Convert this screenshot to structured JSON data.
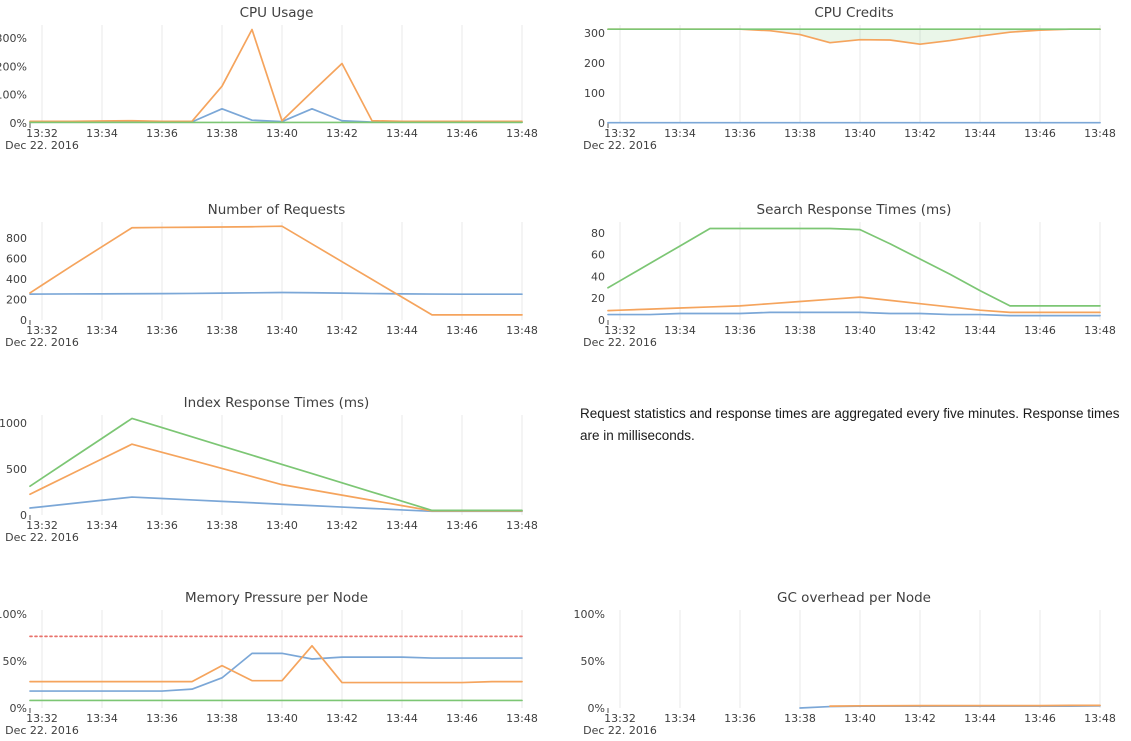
{
  "page": {
    "background": "#ffffff"
  },
  "palette": {
    "blue": "#7BA7D7",
    "orange": "#F5A45D",
    "green": "#7CC674",
    "red": "#E8736C",
    "grid": "#e9e9e9",
    "tick_text": "#3f3f3f",
    "title_text": "#3f3f3f"
  },
  "time_axis": {
    "tick_labels": [
      "13:32",
      "13:34",
      "13:36",
      "13:38",
      "13:40",
      "13:42",
      "13:44",
      "13:46",
      "13:48"
    ],
    "date_label": "Dec 22. 2016",
    "minutes_span": 16
  },
  "note": {
    "text": "Request statistics and response times are aggregated every five minutes. Response times are in milliseconds."
  },
  "chart_data": [
    {
      "id": "cpu-usage",
      "type": "line",
      "title": "CPU Usage",
      "col": "left",
      "row": 1,
      "ylim": [
        0,
        346
      ],
      "yticks": [
        {
          "v": 0,
          "label": "0%"
        },
        {
          "v": 100,
          "label": "100%"
        },
        {
          "v": 200,
          "label": "200%"
        },
        {
          "v": 300,
          "label": "300%"
        }
      ],
      "x": [
        "13:32",
        "13:33",
        "13:34",
        "13:35",
        "13:36",
        "13:37",
        "13:38",
        "13:39",
        "13:40",
        "13:41",
        "13:42",
        "13:43",
        "13:44",
        "13:45",
        "13:46",
        "13:47",
        "13:48"
      ],
      "series": [
        {
          "name": "blue",
          "color": "blue",
          "values": [
            3,
            3,
            3,
            3,
            3,
            4,
            50,
            10,
            5,
            50,
            8,
            3,
            3,
            3,
            3,
            3,
            3
          ]
        },
        {
          "name": "orange",
          "color": "orange",
          "values": [
            6,
            6,
            7,
            8,
            6,
            6,
            130,
            330,
            8,
            110,
            210,
            8,
            6,
            6,
            6,
            6,
            6
          ]
        },
        {
          "name": "green",
          "color": "green",
          "values": [
            2,
            2,
            2,
            2,
            2,
            2,
            2,
            2,
            2,
            2,
            2,
            2,
            2,
            2,
            2,
            2,
            2
          ]
        }
      ]
    },
    {
      "id": "cpu-credits",
      "type": "line",
      "title": "CPU Credits",
      "col": "right",
      "row": 1,
      "ylim": [
        0,
        327
      ],
      "yticks": [
        {
          "v": 0,
          "label": "0"
        },
        {
          "v": 100,
          "label": "100"
        },
        {
          "v": 200,
          "label": "200"
        },
        {
          "v": 300,
          "label": "300"
        }
      ],
      "x": [
        "13:32",
        "13:33",
        "13:34",
        "13:35",
        "13:36",
        "13:37",
        "13:38",
        "13:39",
        "13:40",
        "13:41",
        "13:42",
        "13:43",
        "13:44",
        "13:45",
        "13:46",
        "13:47",
        "13:48"
      ],
      "fill_between": [
        2,
        1,
        "rgba(124,198,116,0.16)"
      ],
      "series": [
        {
          "name": "blue",
          "color": "blue",
          "values": [
            1,
            1,
            1,
            1,
            1,
            1,
            1,
            1,
            1,
            1,
            1,
            1,
            1,
            1,
            1,
            1,
            1
          ]
        },
        {
          "name": "orange",
          "color": "orange",
          "values": [
            313,
            313,
            313,
            313,
            313,
            308,
            295,
            268,
            278,
            277,
            263,
            275,
            290,
            303,
            310,
            313,
            313
          ]
        },
        {
          "name": "green",
          "color": "green",
          "values": [
            313,
            313,
            313,
            313,
            313,
            313,
            313,
            313,
            313,
            313,
            313,
            313,
            313,
            313,
            313,
            313,
            313
          ]
        }
      ]
    },
    {
      "id": "number-of-requests",
      "type": "line",
      "title": "Number of Requests",
      "col": "left",
      "row": 2,
      "ylim": [
        0,
        956
      ],
      "yticks": [
        {
          "v": 0,
          "label": "0"
        },
        {
          "v": 200,
          "label": "200"
        },
        {
          "v": 400,
          "label": "400"
        },
        {
          "v": 600,
          "label": "600"
        },
        {
          "v": 800,
          "label": "800"
        }
      ],
      "x": [
        "13:32",
        "13:33",
        "13:34",
        "13:35",
        "13:36",
        "13:37",
        "13:38",
        "13:39",
        "13:40",
        "13:41",
        "13:42",
        "13:43",
        "13:44",
        "13:45",
        "13:46",
        "13:47",
        "13:48"
      ],
      "series": [
        {
          "name": "blue",
          "color": "blue",
          "values": [
            253,
            254,
            255,
            256,
            257,
            259,
            262,
            265,
            268,
            266,
            262,
            258,
            255,
            253,
            252,
            252,
            252
          ]
        },
        {
          "name": "orange",
          "color": "orange",
          "values": [
            340,
            530,
            715,
            900,
            903,
            905,
            907,
            910,
            915,
            742,
            569,
            396,
            223,
            50,
            50,
            50,
            50
          ]
        }
      ]
    },
    {
      "id": "search-response-times",
      "type": "line",
      "title": "Search Response Times (ms)",
      "col": "right",
      "row": 2,
      "ylim": [
        0,
        90
      ],
      "yticks": [
        {
          "v": 0,
          "label": "0"
        },
        {
          "v": 20,
          "label": "20"
        },
        {
          "v": 40,
          "label": "40"
        },
        {
          "v": 60,
          "label": "60"
        },
        {
          "v": 80,
          "label": "80"
        }
      ],
      "x": [
        "13:32",
        "13:33",
        "13:34",
        "13:35",
        "13:36",
        "13:37",
        "13:38",
        "13:39",
        "13:40",
        "13:41",
        "13:42",
        "13:43",
        "13:44",
        "13:45",
        "13:46",
        "13:47",
        "13:48"
      ],
      "series": [
        {
          "name": "blue",
          "color": "blue",
          "values": [
            5,
            5,
            6,
            6,
            6,
            7,
            7,
            7,
            7,
            6,
            6,
            5,
            5,
            4,
            4,
            4,
            4
          ]
        },
        {
          "name": "orange",
          "color": "orange",
          "values": [
            9,
            10,
            11,
            12,
            13,
            15,
            17,
            19,
            21,
            18,
            15,
            12,
            9,
            7,
            7,
            7,
            7
          ]
        },
        {
          "name": "green",
          "color": "green",
          "values": [
            36,
            52,
            68,
            84,
            84,
            84,
            84,
            84,
            83,
            70,
            56,
            42,
            27,
            13,
            13,
            13,
            13
          ]
        }
      ]
    },
    {
      "id": "index-response-times",
      "type": "line",
      "title": "Index Response Times (ms)",
      "col": "left",
      "row": 3,
      "ylim": [
        0,
        1087
      ],
      "yticks": [
        {
          "v": 0,
          "label": "0"
        },
        {
          "v": 500,
          "label": "500"
        },
        {
          "v": 1000,
          "label": "1000"
        }
      ],
      "x": [
        "13:32",
        "13:33",
        "13:34",
        "13:35",
        "13:36",
        "13:37",
        "13:38",
        "13:39",
        "13:40",
        "13:41",
        "13:42",
        "13:43",
        "13:44",
        "13:45",
        "13:46",
        "13:47",
        "13:48"
      ],
      "series": [
        {
          "name": "blue",
          "color": "blue",
          "values": [
            90,
            125,
            160,
            195,
            179,
            164,
            148,
            133,
            117,
            102,
            86,
            71,
            55,
            40,
            40,
            40,
            40
          ]
        },
        {
          "name": "orange",
          "color": "orange",
          "values": [
            290,
            450,
            610,
            770,
            682,
            594,
            506,
            418,
            330,
            273,
            216,
            159,
            102,
            45,
            45,
            45,
            45
          ]
        },
        {
          "name": "green",
          "color": "green",
          "values": [
            400,
            617,
            833,
            1050,
            950,
            850,
            750,
            650,
            550,
            450,
            350,
            250,
            150,
            50,
            50,
            50,
            50
          ]
        }
      ]
    },
    {
      "id": "memory-pressure-per-node",
      "type": "line",
      "title": "Memory Pressure per Node",
      "col": "left",
      "row": 4,
      "ylim": [
        0,
        104
      ],
      "yticks": [
        {
          "v": 0,
          "label": "0%"
        },
        {
          "v": 50,
          "label": "50%"
        },
        {
          "v": 100,
          "label": "100%"
        }
      ],
      "x": [
        "13:32",
        "13:33",
        "13:34",
        "13:35",
        "13:36",
        "13:37",
        "13:38",
        "13:39",
        "13:40",
        "13:41",
        "13:42",
        "13:43",
        "13:44",
        "13:45",
        "13:46",
        "13:47",
        "13:48"
      ],
      "series": [
        {
          "name": "blue",
          "color": "blue",
          "values": [
            18,
            18,
            18,
            18,
            18,
            20,
            32,
            58,
            58,
            52,
            54,
            54,
            54,
            53,
            53,
            53,
            53
          ]
        },
        {
          "name": "orange",
          "color": "orange",
          "values": [
            28,
            28,
            28,
            28,
            28,
            28,
            45,
            29,
            29,
            66,
            27,
            27,
            27,
            27,
            27,
            28,
            28
          ]
        },
        {
          "name": "green",
          "color": "green",
          "values": [
            8,
            8,
            8,
            8,
            8,
            8,
            8,
            8,
            8,
            8,
            8,
            8,
            8,
            8,
            8,
            8,
            8
          ]
        },
        {
          "name": "threshold",
          "color": "red",
          "dash": "2,3",
          "values": [
            76,
            76,
            76,
            76,
            76,
            76,
            76,
            76,
            76,
            76,
            76,
            76,
            76,
            76,
            76,
            76,
            76
          ]
        }
      ]
    },
    {
      "id": "gc-overhead-per-node",
      "type": "line",
      "title": "GC overhead per Node",
      "col": "right",
      "row": 4,
      "ylim": [
        0,
        104
      ],
      "yticks": [
        {
          "v": 0,
          "label": "0%"
        },
        {
          "v": 50,
          "label": "50%"
        },
        {
          "v": 100,
          "label": "100%"
        }
      ],
      "x": [
        "13:32",
        "13:33",
        "13:34",
        "13:35",
        "13:36",
        "13:37",
        "13:38",
        "13:39",
        "13:40",
        "13:41",
        "13:42",
        "13:43",
        "13:44",
        "13:45",
        "13:46",
        "13:47",
        "13:48"
      ],
      "series": [
        {
          "name": "blue",
          "color": "blue",
          "values": [
            null,
            null,
            null,
            null,
            null,
            null,
            0,
            1.5,
            2,
            2,
            2,
            2,
            2,
            2,
            2,
            2,
            2.2
          ]
        },
        {
          "name": "orange",
          "color": "orange",
          "values": [
            null,
            null,
            null,
            null,
            null,
            null,
            null,
            2,
            2.3,
            2.4,
            2.5,
            2.5,
            2.5,
            2.5,
            2.5,
            2.8,
            2.8
          ]
        }
      ]
    }
  ]
}
